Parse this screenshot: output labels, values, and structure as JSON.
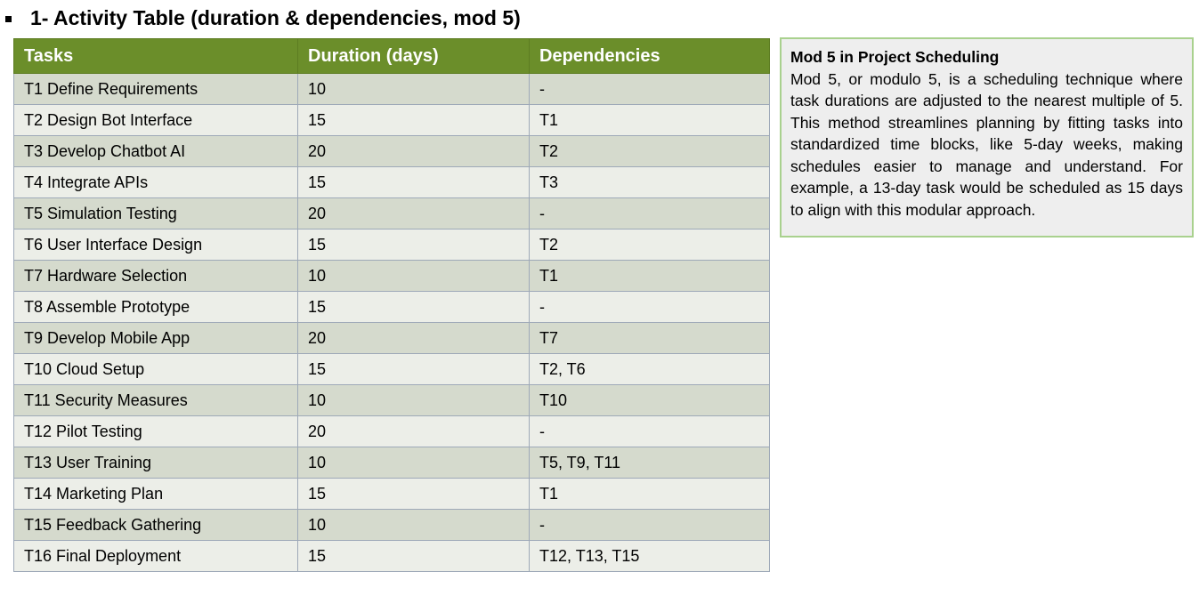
{
  "heading": "1- Activity Table (duration & dependencies, mod 5)",
  "table": {
    "columns": [
      "Tasks",
      "Duration (days)",
      "Dependencies"
    ],
    "rows": [
      [
        "T1 Define Requirements",
        "10",
        "-"
      ],
      [
        "T2 Design Bot Interface",
        "15",
        "T1"
      ],
      [
        "T3 Develop Chatbot AI",
        "20",
        "T2"
      ],
      [
        "T4 Integrate APIs",
        "15",
        "T3"
      ],
      [
        "T5 Simulation Testing",
        "20",
        "-"
      ],
      [
        "T6 User Interface Design",
        "15",
        "T2"
      ],
      [
        "T7 Hardware Selection",
        "10",
        "T1"
      ],
      [
        "T8 Assemble Prototype",
        "15",
        "-"
      ],
      [
        "T9 Develop Mobile App",
        "20",
        "T7"
      ],
      [
        "T10 Cloud Setup",
        "15",
        "T2, T6"
      ],
      [
        "T11 Security Measures",
        "10",
        "T10"
      ],
      [
        "T12 Pilot Testing",
        "20",
        "-"
      ],
      [
        "T13 User Training",
        "10",
        "T5, T9, T11"
      ],
      [
        "T14 Marketing Plan",
        "15",
        "T1"
      ],
      [
        "T15 Feedback Gathering",
        "10",
        "-"
      ],
      [
        "T16 Final Deployment",
        "15",
        "T12, T13, T15"
      ]
    ]
  },
  "note": {
    "title": "Mod 5 in Project Scheduling",
    "body": "Mod 5, or modulo 5, is a scheduling technique where task durations are adjusted to the nearest multiple of 5. This method streamlines planning by fitting tasks into standardized time blocks, like 5-day weeks, making schedules easier to manage and understand. For example, a 13-day task would be scheduled as 15 days to align with this modular approach."
  },
  "colors": {
    "header_bg": "#6b8e2a",
    "row_odd": "#d5dacd",
    "row_even": "#eceee8",
    "note_border": "#a9d18e",
    "note_bg": "#eeeeee"
  }
}
